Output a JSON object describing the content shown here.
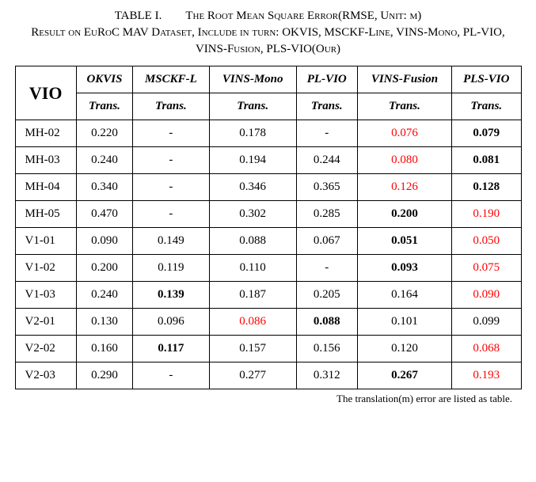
{
  "caption": {
    "tableNum": "TABLE I.",
    "titleLine1": "The Root Mean Square Error(RMSE,  Unit: m)",
    "titleLine2": "Result on EuRoC MAV Dataset, Include in turn: OKVIS, MSCKF-Line, VINS-Mono, PL-VIO, VINS-Fusion, PLS-VIO(Our)"
  },
  "header": {
    "vio": "VIO",
    "methods": [
      "OKVIS",
      "MSCKF-L",
      "VINS-Mono",
      "PL-VIO",
      "VINS-Fusion",
      "PLS-VIO"
    ],
    "sub": "Trans."
  },
  "rows": [
    {
      "name": "MH-02",
      "cells": [
        {
          "v": "0.220"
        },
        {
          "v": "-"
        },
        {
          "v": "0.178"
        },
        {
          "v": "-"
        },
        {
          "v": "0.076",
          "cls": "red"
        },
        {
          "v": "0.079",
          "cls": "bold"
        }
      ]
    },
    {
      "name": "MH-03",
      "cells": [
        {
          "v": "0.240"
        },
        {
          "v": "-"
        },
        {
          "v": "0.194"
        },
        {
          "v": "0.244"
        },
        {
          "v": "0.080",
          "cls": "red"
        },
        {
          "v": "0.081",
          "cls": "bold"
        }
      ]
    },
    {
      "name": "MH-04",
      "cells": [
        {
          "v": "0.340"
        },
        {
          "v": "-"
        },
        {
          "v": "0.346"
        },
        {
          "v": "0.365"
        },
        {
          "v": "0.126",
          "cls": "red"
        },
        {
          "v": "0.128",
          "cls": "bold"
        }
      ]
    },
    {
      "name": "MH-05",
      "cells": [
        {
          "v": "0.470"
        },
        {
          "v": "-"
        },
        {
          "v": "0.302"
        },
        {
          "v": "0.285"
        },
        {
          "v": "0.200",
          "cls": "bold"
        },
        {
          "v": "0.190",
          "cls": "red"
        }
      ]
    },
    {
      "name": "V1-01",
      "cells": [
        {
          "v": "0.090"
        },
        {
          "v": "0.149"
        },
        {
          "v": "0.088"
        },
        {
          "v": "0.067"
        },
        {
          "v": "0.051",
          "cls": "bold"
        },
        {
          "v": "0.050",
          "cls": "red"
        }
      ]
    },
    {
      "name": "V1-02",
      "cells": [
        {
          "v": "0.200"
        },
        {
          "v": "0.119"
        },
        {
          "v": "0.110"
        },
        {
          "v": "-"
        },
        {
          "v": "0.093",
          "cls": "bold"
        },
        {
          "v": "0.075",
          "cls": "red"
        }
      ]
    },
    {
      "name": "V1-03",
      "cells": [
        {
          "v": "0.240"
        },
        {
          "v": "0.139",
          "cls": "bold"
        },
        {
          "v": "0.187"
        },
        {
          "v": "0.205"
        },
        {
          "v": "0.164"
        },
        {
          "v": "0.090",
          "cls": "red"
        }
      ]
    },
    {
      "name": "V2-01",
      "cells": [
        {
          "v": "0.130"
        },
        {
          "v": "0.096"
        },
        {
          "v": "0.086",
          "cls": "red"
        },
        {
          "v": "0.088",
          "cls": "bold"
        },
        {
          "v": "0.101"
        },
        {
          "v": "0.099"
        }
      ]
    },
    {
      "name": "V2-02",
      "cells": [
        {
          "v": "0.160"
        },
        {
          "v": "0.117",
          "cls": "bold"
        },
        {
          "v": "0.157"
        },
        {
          "v": "0.156"
        },
        {
          "v": "0.120"
        },
        {
          "v": "0.068",
          "cls": "red"
        }
      ]
    },
    {
      "name": "V2-03",
      "cells": [
        {
          "v": "0.290"
        },
        {
          "v": "-"
        },
        {
          "v": "0.277"
        },
        {
          "v": "0.312"
        },
        {
          "v": "0.267",
          "cls": "bold"
        },
        {
          "v": "0.193",
          "cls": "red"
        }
      ]
    }
  ],
  "footnote": "The translation(m) error are listed as table."
}
